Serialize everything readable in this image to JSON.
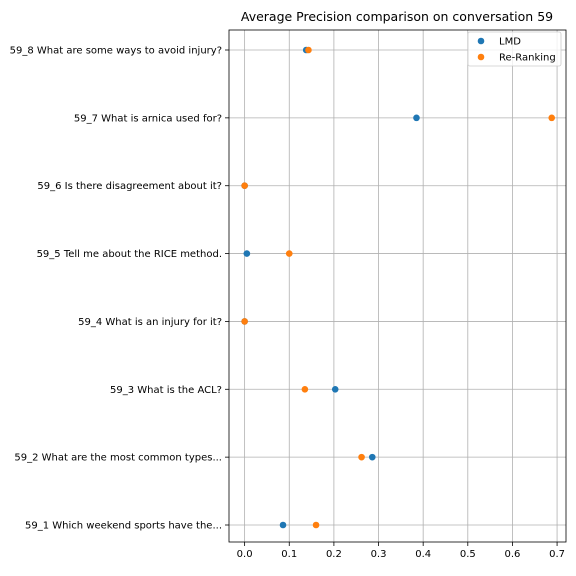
{
  "chart_data": {
    "type": "scatter",
    "title": "Average Precision comparison on conversation 59",
    "xlabel": "",
    "ylabel": "",
    "xlim": [
      -0.035,
      0.72
    ],
    "xticks": [
      0.0,
      0.1,
      0.2,
      0.3,
      0.4,
      0.5,
      0.6,
      0.7
    ],
    "xtick_labels": [
      "0.0",
      "0.1",
      "0.2",
      "0.3",
      "0.4",
      "0.5",
      "0.6",
      "0.7"
    ],
    "categories": [
      "59_1 Which weekend sports have the...",
      "59_2 What are the most common types...",
      "59_3 What is the ACL?",
      "59_4 What is an injury for it?",
      "59_5 Tell me about the RICE method.",
      "59_6 Is there disagreement about it?",
      "59_7 What is arnica used for?",
      "59_8 What are some ways to avoid injury?"
    ],
    "series": [
      {
        "name": "LMD",
        "color": "#1f77b4",
        "values": [
          0.086,
          0.286,
          0.203,
          0.0,
          0.005,
          0.0,
          0.385,
          0.138
        ]
      },
      {
        "name": "Re-Ranking",
        "color": "#ff7f0e",
        "values": [
          0.16,
          0.262,
          0.135,
          0.0,
          0.1,
          0.0,
          0.688,
          0.143
        ]
      }
    ],
    "grid": true,
    "legend_position": "top-right"
  }
}
